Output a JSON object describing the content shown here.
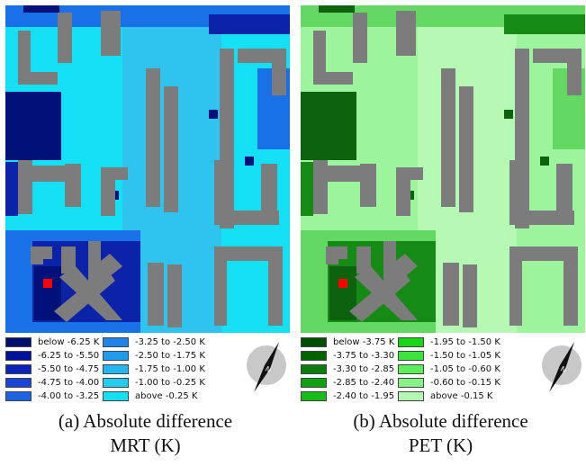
{
  "panels": [
    {
      "id": "a",
      "colors": {
        "background": "#14e0f5",
        "block": "#7c7c7c",
        "lighter": "#2fc4f0",
        "darker": "#1a70e6",
        "darkest": "#00127a",
        "mid": "#0b23a8"
      },
      "legend": [
        {
          "label": "below -6.25 K",
          "color": "#000f6e"
        },
        {
          "label": "-6.25 to -5.50 K",
          "color": "#00129a"
        },
        {
          "label": "-5.50 to -4.75 K",
          "color": "#0a25b8"
        },
        {
          "label": "-4.75 to -4.00 K",
          "color": "#1a45d8"
        },
        {
          "label": "-4.00 to -3.25 K",
          "color": "#1c63e4"
        },
        {
          "label": "-3.25 to -2.50 K",
          "color": "#1e84ea"
        },
        {
          "label": "-2.50 to -1.75 K",
          "color": "#1e9cf0"
        },
        {
          "label": "-1.75 to -1.00 K",
          "color": "#22b6f2"
        },
        {
          "label": "-1.00 to -0.25 K",
          "color": "#24cdf4"
        },
        {
          "label": "above -0.25 K",
          "color": "#14e0f5"
        }
      ],
      "caption_line1": "(a) Absolute difference",
      "caption_line2": "MRT (K)"
    },
    {
      "id": "b",
      "colors": {
        "background": "#9cf59c",
        "block": "#7c7c7c",
        "lighter": "#b4f8b4",
        "darker": "#63d863",
        "darkest": "#0d620d",
        "mid": "#158a15"
      },
      "legend": [
        {
          "label": "below -3.75 K",
          "color": "#004c00"
        },
        {
          "label": "-3.75 to -3.30 K",
          "color": "#006400"
        },
        {
          "label": "-3.30 to -2.85 K",
          "color": "#0c7d0c"
        },
        {
          "label": "-2.85 to -2.40 K",
          "color": "#0fa10f"
        },
        {
          "label": "-2.40 to -1.95 K",
          "color": "#16bd16"
        },
        {
          "label": "-1.95 to -1.50 K",
          "color": "#17d617"
        },
        {
          "label": "-1.50 to -1.05 K",
          "color": "#3ae63a"
        },
        {
          "label": "-1.05 to -0.60 K",
          "color": "#5cef5c"
        },
        {
          "label": "-0.60 to -0.15 K",
          "color": "#85f485"
        },
        {
          "label": "above -0.15 K",
          "color": "#b2f8b2"
        }
      ],
      "caption_line1": "(b) Absolute difference",
      "caption_line2": "PET (K)"
    }
  ],
  "marker_color": "#ff0000",
  "compass_letter": "N"
}
